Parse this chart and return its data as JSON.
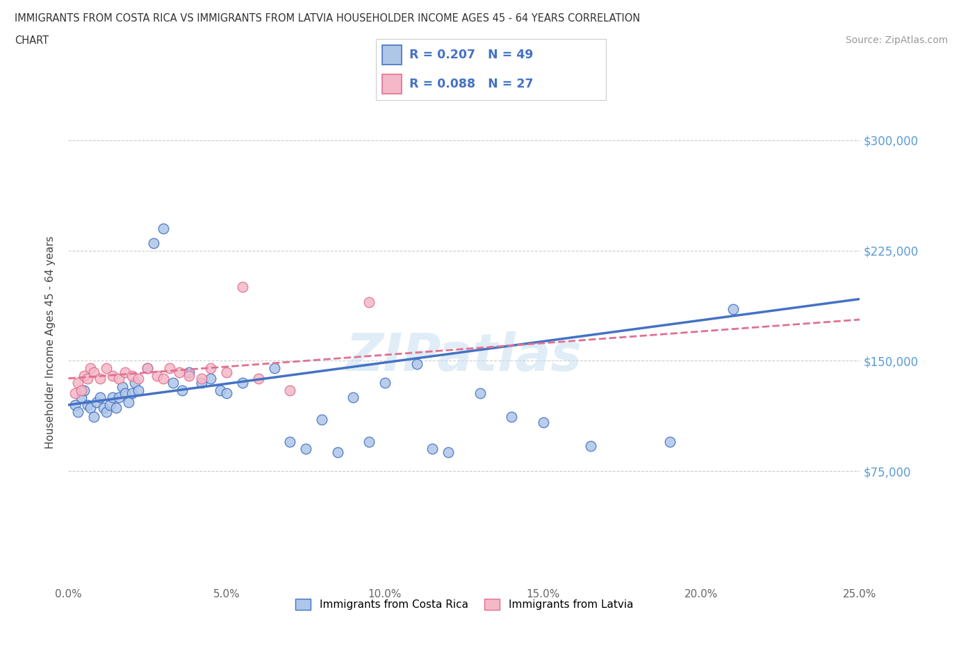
{
  "title_line1": "IMMIGRANTS FROM COSTA RICA VS IMMIGRANTS FROM LATVIA HOUSEHOLDER INCOME AGES 45 - 64 YEARS CORRELATION",
  "title_line2": "CHART",
  "source_text": "Source: ZipAtlas.com",
  "ylabel": "Householder Income Ages 45 - 64 years",
  "x_min": 0.0,
  "x_max": 0.25,
  "y_min": 0,
  "y_max": 325000,
  "y_ticks": [
    75000,
    150000,
    225000,
    300000
  ],
  "y_tick_labels": [
    "$75,000",
    "$150,000",
    "$225,000",
    "$300,000"
  ],
  "x_ticks": [
    0.0,
    0.05,
    0.1,
    0.15,
    0.2,
    0.25
  ],
  "x_tick_labels": [
    "0.0%",
    "5.0%",
    "10.0%",
    "15.0%",
    "20.0%",
    "25.0%"
  ],
  "costa_rica_R": 0.207,
  "costa_rica_N": 49,
  "latvia_R": 0.088,
  "latvia_N": 27,
  "costa_rica_color": "#aec6e8",
  "costa_rica_edge_color": "#4472c4",
  "latvia_color": "#f4b8c8",
  "latvia_edge_color": "#e07090",
  "costa_rica_line_color": "#4472c4",
  "latvia_line_color": "#e07090",
  "watermark": "ZIPatlas",
  "costa_rica_x": [
    0.002,
    0.003,
    0.004,
    0.005,
    0.006,
    0.007,
    0.008,
    0.009,
    0.01,
    0.011,
    0.012,
    0.013,
    0.014,
    0.015,
    0.016,
    0.017,
    0.018,
    0.019,
    0.02,
    0.021,
    0.022,
    0.025,
    0.027,
    0.03,
    0.033,
    0.036,
    0.038,
    0.042,
    0.045,
    0.048,
    0.05,
    0.055,
    0.065,
    0.07,
    0.075,
    0.08,
    0.085,
    0.09,
    0.095,
    0.1,
    0.11,
    0.115,
    0.12,
    0.13,
    0.14,
    0.15,
    0.165,
    0.19,
    0.21
  ],
  "costa_rica_y": [
    120000,
    115000,
    125000,
    130000,
    120000,
    118000,
    112000,
    122000,
    125000,
    118000,
    115000,
    120000,
    125000,
    118000,
    125000,
    132000,
    128000,
    122000,
    128000,
    135000,
    130000,
    145000,
    230000,
    240000,
    135000,
    130000,
    142000,
    135000,
    138000,
    130000,
    128000,
    135000,
    145000,
    95000,
    90000,
    110000,
    88000,
    125000,
    95000,
    135000,
    148000,
    90000,
    88000,
    128000,
    112000,
    108000,
    92000,
    95000,
    185000
  ],
  "latvia_x": [
    0.002,
    0.003,
    0.004,
    0.005,
    0.006,
    0.007,
    0.008,
    0.01,
    0.012,
    0.014,
    0.016,
    0.018,
    0.02,
    0.022,
    0.025,
    0.028,
    0.03,
    0.032,
    0.035,
    0.038,
    0.042,
    0.045,
    0.05,
    0.055,
    0.06,
    0.07,
    0.095
  ],
  "latvia_y": [
    128000,
    135000,
    130000,
    140000,
    138000,
    145000,
    142000,
    138000,
    145000,
    140000,
    138000,
    142000,
    140000,
    138000,
    145000,
    140000,
    138000,
    145000,
    142000,
    140000,
    138000,
    145000,
    142000,
    200000,
    138000,
    130000,
    190000
  ]
}
